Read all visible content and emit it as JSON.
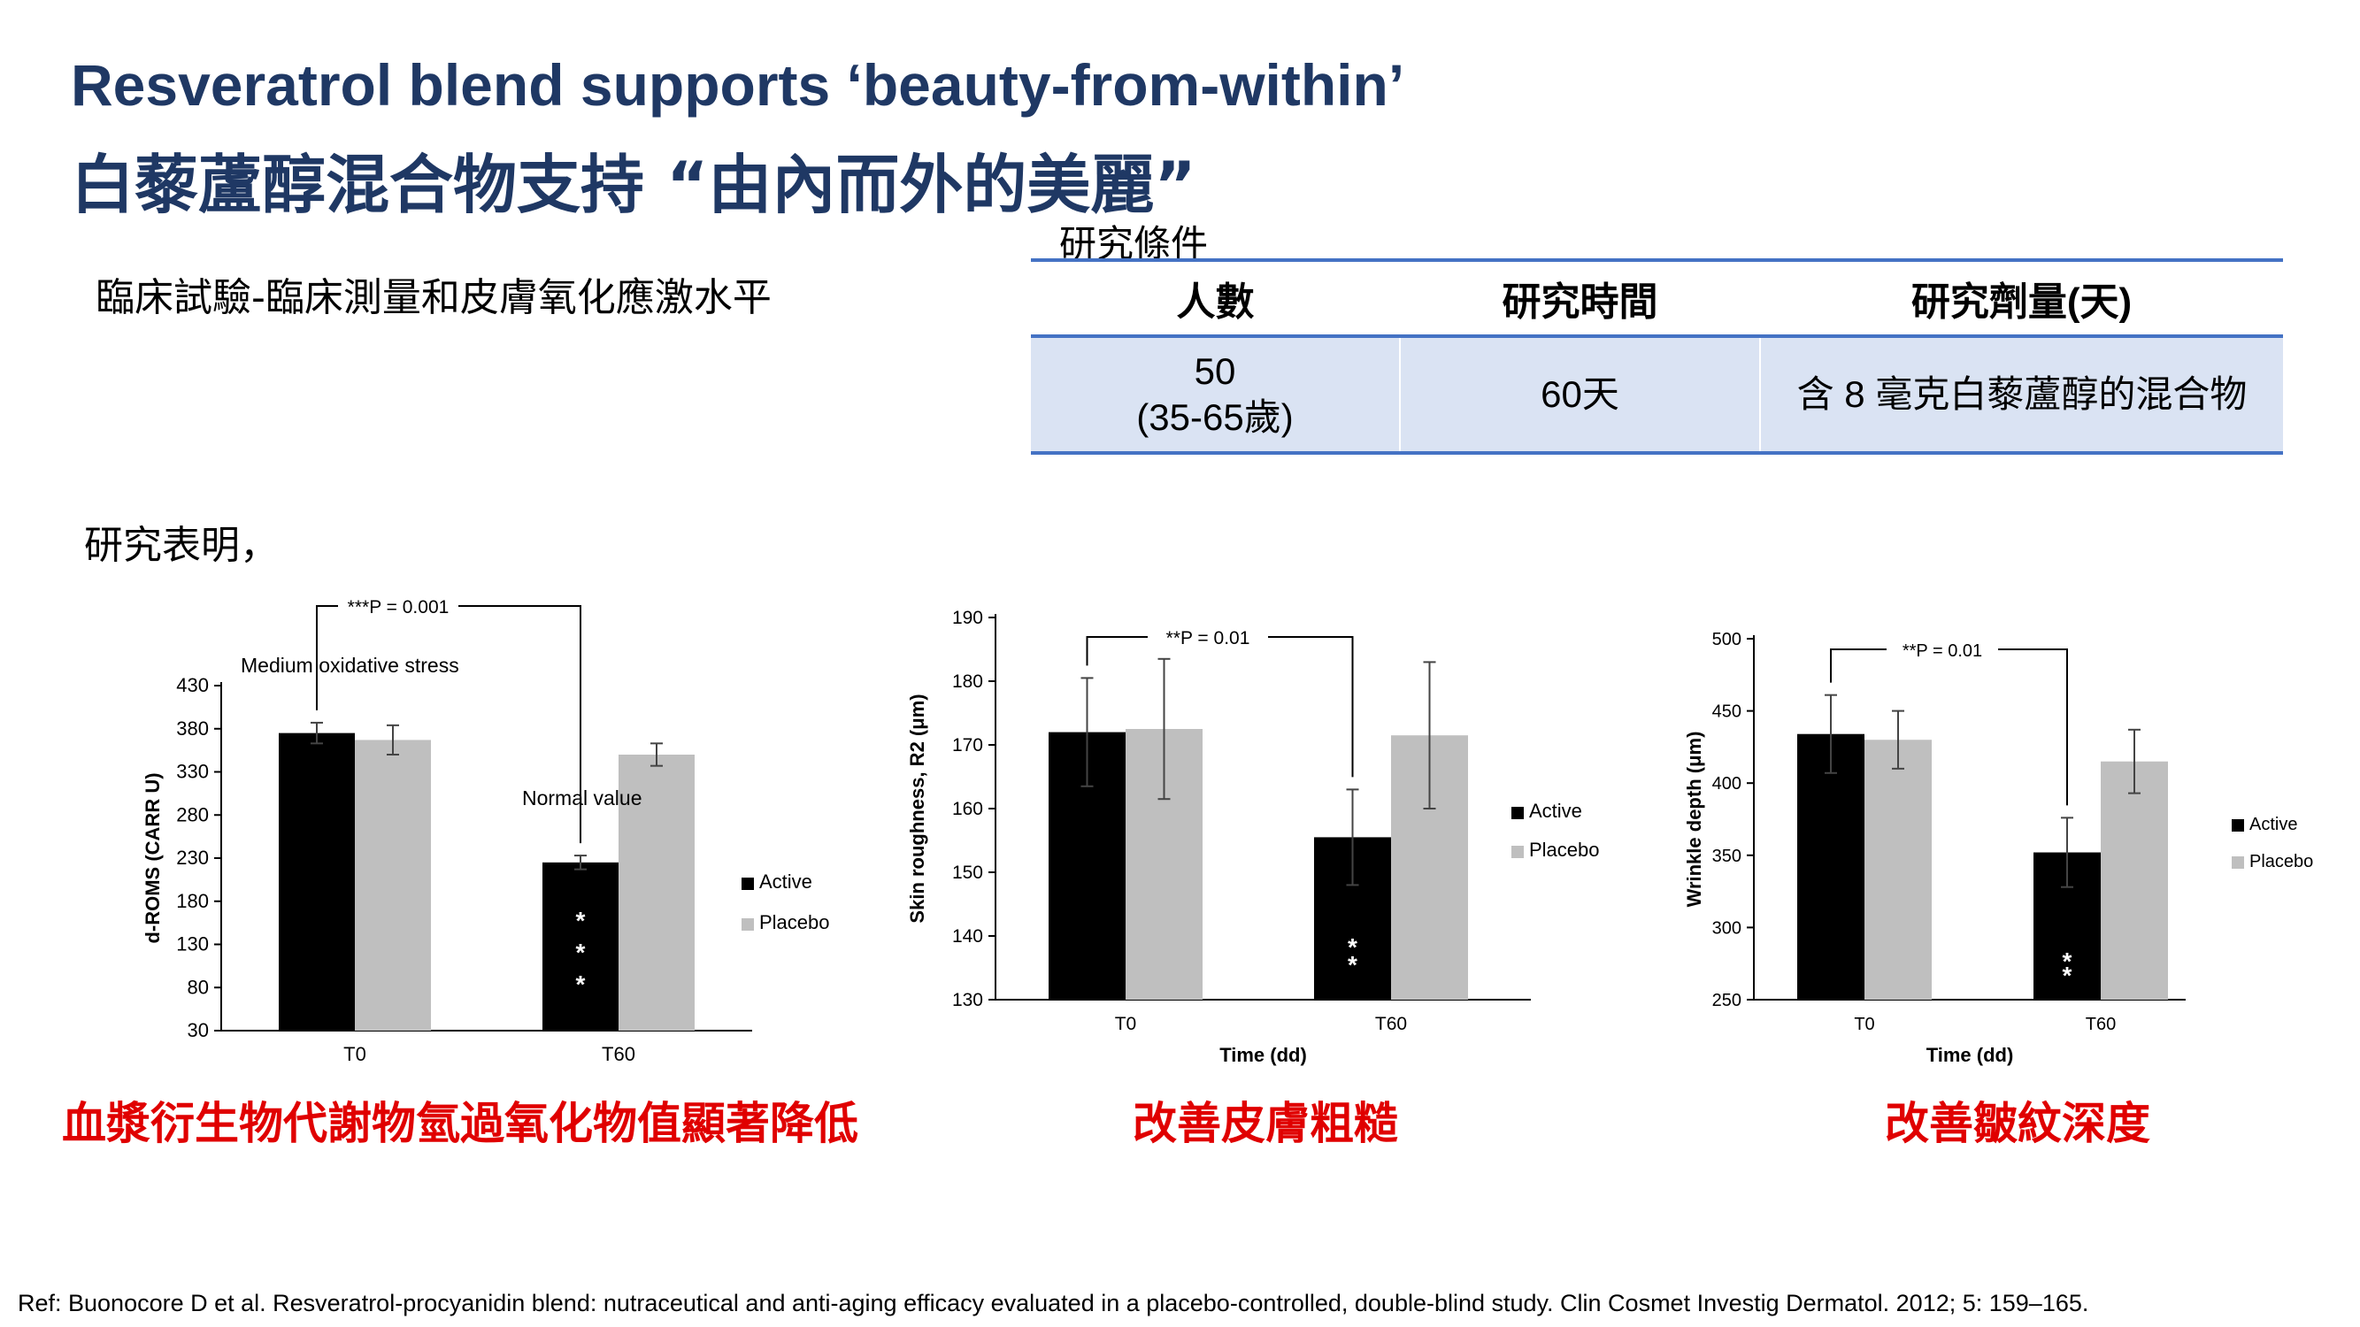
{
  "title_en": "Resveratrol blend supports ‘beauty-from-within’",
  "title_zh": "白藜蘆醇混合物支持 “由內而外的美麗”",
  "subtitle": "臨床試驗-臨床測量和皮膚氧化應激水平",
  "findings_label": "研究表明，",
  "study_table": {
    "caption": "研究條件",
    "headers": [
      "人數",
      "研究時間",
      "研究劑量(天)"
    ],
    "row": {
      "participants_line1": "50",
      "participants_line2": "(35-65歲)",
      "duration": "60天",
      "dose": "含 8 毫克白藜蘆醇的混合物"
    }
  },
  "colors": {
    "active": "#000000",
    "placebo": "#bfbfbf",
    "title": "#1f3864",
    "caption": "#e00000"
  },
  "chart_data": [
    {
      "type": "bar",
      "categories": [
        "T0",
        "T60"
      ],
      "series": [
        {
          "name": "Active",
          "values": [
            375,
            225
          ],
          "errors": [
            12,
            8
          ]
        },
        {
          "name": "Placebo",
          "values": [
            367,
            350
          ],
          "errors": [
            17,
            13
          ]
        }
      ],
      "ylabel": "d-ROMS (CARR U)",
      "xlabel": "",
      "ylim": [
        30,
        430
      ],
      "yticks": [
        30,
        80,
        130,
        180,
        230,
        280,
        330,
        380,
        430
      ],
      "annotation": "***P = 0.001",
      "extra_labels": [
        "Medium oxidative stress",
        "Normal value"
      ],
      "stars": [
        "*",
        "*",
        "*"
      ],
      "legend": "right"
    },
    {
      "type": "bar",
      "categories": [
        "T0",
        "T60"
      ],
      "series": [
        {
          "name": "Active",
          "values": [
            172,
            155.5
          ],
          "errors": [
            8.5,
            7.5
          ]
        },
        {
          "name": "Placebo",
          "values": [
            172.5,
            171.5
          ],
          "errors": [
            11,
            11.5
          ]
        }
      ],
      "ylabel": "Skin roughness, R2 (μm)",
      "xlabel": "Time (dd)",
      "ylim": [
        130,
        190
      ],
      "yticks": [
        130,
        140,
        150,
        160,
        170,
        180,
        190
      ],
      "annotation": "**P = 0.01",
      "stars": [
        "*",
        "*"
      ],
      "legend": "right"
    },
    {
      "type": "bar",
      "categories": [
        "T0",
        "T60"
      ],
      "series": [
        {
          "name": "Active",
          "values": [
            434,
            352
          ],
          "errors": [
            27,
            24
          ]
        },
        {
          "name": "Placebo",
          "values": [
            430,
            415
          ],
          "errors": [
            20,
            22
          ]
        }
      ],
      "ylabel": "Wrinkle depth (μm)",
      "xlabel": "Time (dd)",
      "ylim": [
        250,
        500
      ],
      "yticks": [
        250,
        300,
        350,
        400,
        450,
        500
      ],
      "annotation": "**P = 0.01",
      "stars": [
        "*",
        "*"
      ],
      "legend": "right"
    }
  ],
  "captions": [
    "血漿衍生物代謝物氫過氧化物值顯著降低",
    "改善皮膚粗糙",
    "改善皺紋深度"
  ],
  "reference": "Ref: Buonocore D et al. Resveratrol-procyanidin blend: nutraceutical and anti-aging efficacy evaluated in a placebo-controlled, double-blind study. Clin Cosmet Investig Dermatol. 2012; 5: 159–165."
}
